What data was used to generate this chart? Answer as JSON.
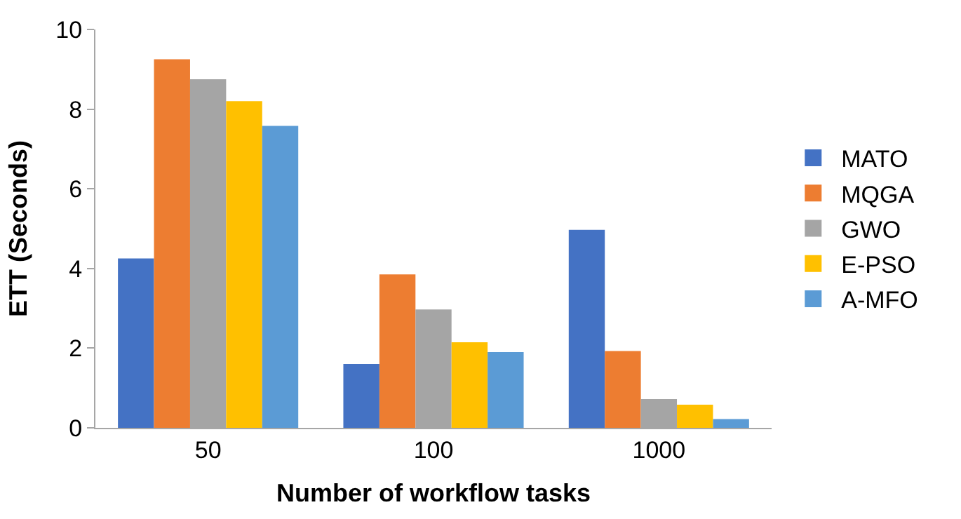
{
  "chart_data": {
    "type": "bar",
    "xlabel": "Number of workflow tasks",
    "ylabel": "ETT (Seconds)",
    "categories": [
      "50",
      "100",
      "1000"
    ],
    "series": [
      {
        "name": "MATO",
        "color": "#4472c4",
        "values": [
          4.25,
          1.6,
          4.97
        ]
      },
      {
        "name": "MQGA",
        "color": "#ed7d31",
        "values": [
          9.25,
          3.85,
          1.93
        ]
      },
      {
        "name": "GWO",
        "color": "#a5a5a5",
        "values": [
          8.75,
          2.97,
          0.72
        ]
      },
      {
        "name": "E-PSO",
        "color": "#ffc000",
        "values": [
          8.2,
          2.15,
          0.58
        ]
      },
      {
        "name": "A-MFO",
        "color": "#5b9bd5",
        "values": [
          7.58,
          1.9,
          0.22
        ]
      }
    ],
    "ylim": [
      0,
      10
    ],
    "yticks": [
      0,
      2,
      4,
      6,
      8,
      10
    ],
    "legend": "right"
  }
}
